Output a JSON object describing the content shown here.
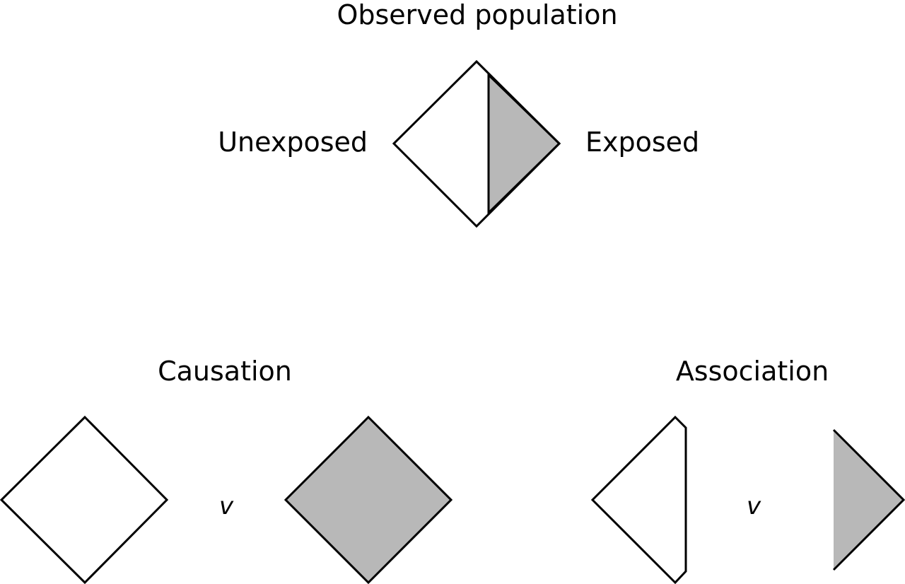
{
  "title": "Observed population",
  "labels": {
    "unexposed": "Unexposed",
    "exposed": "Exposed",
    "causation": "Causation",
    "association": "Association",
    "versus_left": "v",
    "versus_right": "v"
  },
  "colors": {
    "outline": "#000000",
    "unexposed_fill": "#ffffff",
    "exposed_fill": "#b8b8b8"
  }
}
